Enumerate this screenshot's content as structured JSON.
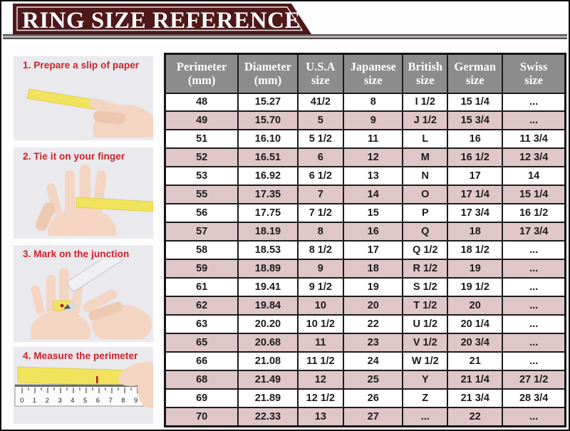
{
  "header": {
    "title": "RING SIZE REFERENCE"
  },
  "colors": {
    "banner_maroon": "#4e181b",
    "header_gray": "#8c8c8c",
    "row_pink": "#dfc6c7",
    "step_red": "#cb2127",
    "paper_yellow": "#f1e35c"
  },
  "steps": [
    {
      "label": "1. Prepare a slip of paper"
    },
    {
      "label": "2. Tie it on your finger"
    },
    {
      "label": "3. Mark on the junction"
    },
    {
      "label": "4. Measure the perimeter",
      "ruler_numbers": "0123456789"
    }
  ],
  "chart_data": {
    "type": "table",
    "title": "RING SIZE REFERENCE",
    "columns": [
      {
        "line1": "Perimeter",
        "line2": "(mm)"
      },
      {
        "line1": "Diameter",
        "line2": "(mm)"
      },
      {
        "line1": "U.S.A",
        "line2": "size"
      },
      {
        "line1": "Japanese",
        "line2": "size"
      },
      {
        "line1": "British",
        "line2": "size"
      },
      {
        "line1": "German",
        "line2": "size"
      },
      {
        "line1": "Swiss",
        "line2": "size"
      }
    ],
    "rows": [
      [
        "48",
        "15.27",
        "41/2",
        "8",
        "I 1/2",
        "15 1/4",
        "..."
      ],
      [
        "49",
        "15.70",
        "5",
        "9",
        "J 1/2",
        "15 3/4",
        "..."
      ],
      [
        "51",
        "16.10",
        "5 1/2",
        "11",
        "L",
        "16",
        "11 3/4"
      ],
      [
        "52",
        "16.51",
        "6",
        "12",
        "M",
        "16 1/2",
        "12 3/4"
      ],
      [
        "53",
        "16.92",
        "6 1/2",
        "13",
        "N",
        "17",
        "14"
      ],
      [
        "55",
        "17.35",
        "7",
        "14",
        "O",
        "17 1/4",
        "15 1/4"
      ],
      [
        "56",
        "17.75",
        "7 1/2",
        "15",
        "P",
        "17 3/4",
        "16 1/2"
      ],
      [
        "57",
        "18.19",
        "8",
        "16",
        "Q",
        "18",
        "17 3/4"
      ],
      [
        "58",
        "18.53",
        "8 1/2",
        "17",
        "Q 1/2",
        "18 1/2",
        "..."
      ],
      [
        "59",
        "18.89",
        "9",
        "18",
        "R 1/2",
        "19",
        "..."
      ],
      [
        "61",
        "19.41",
        "9 1/2",
        "19",
        "S 1/2",
        "19 1/2",
        "..."
      ],
      [
        "62",
        "19.84",
        "10",
        "20",
        "T 1/2",
        "20",
        "..."
      ],
      [
        "63",
        "20.20",
        "10 1/2",
        "22",
        "U 1/2",
        "20 1/4",
        "..."
      ],
      [
        "65",
        "20.68",
        "11",
        "23",
        "V 1/2",
        "20 3/4",
        "..."
      ],
      [
        "66",
        "21.08",
        "11 1/2",
        "24",
        "W 1/2",
        "21",
        "..."
      ],
      [
        "68",
        "21.49",
        "12",
        "25",
        "Y",
        "21 1/4",
        "27 1/2"
      ],
      [
        "69",
        "21.89",
        "12 1/2",
        "26",
        "Z",
        "21 3/4",
        "28 3/4"
      ],
      [
        "70",
        "22.33",
        "13",
        "27",
        "...",
        "22",
        "..."
      ]
    ]
  }
}
